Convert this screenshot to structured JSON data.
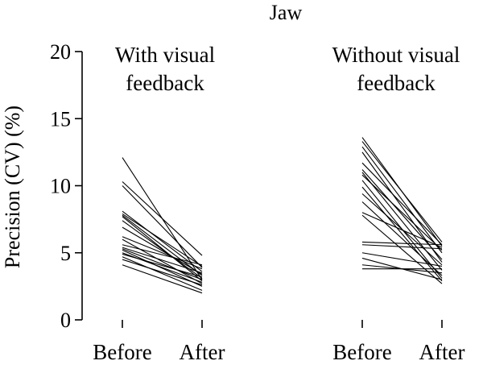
{
  "chart_data": {
    "type": "line",
    "title": "Jaw",
    "ylabel": "Precision (CV) (%)",
    "ylim": [
      0,
      20
    ],
    "yticks": [
      0,
      5,
      10,
      15,
      20
    ],
    "grid": false,
    "panels": [
      {
        "label_lines": [
          "With visual",
          "feedback"
        ],
        "categories": [
          "Before",
          "After"
        ],
        "subjects": [
          [
            12.1,
            3.0
          ],
          [
            10.3,
            4.8
          ],
          [
            10.0,
            3.9
          ],
          [
            8.1,
            3.6
          ],
          [
            7.9,
            4.0
          ],
          [
            7.8,
            3.3
          ],
          [
            7.7,
            2.9
          ],
          [
            7.4,
            3.1
          ],
          [
            6.9,
            3.4
          ],
          [
            6.2,
            3.8
          ],
          [
            6.0,
            2.7
          ],
          [
            5.6,
            4.1
          ],
          [
            5.4,
            3.5
          ],
          [
            5.3,
            3.0
          ],
          [
            5.2,
            2.5
          ],
          [
            5.0,
            2.8
          ],
          [
            4.9,
            3.2
          ],
          [
            4.7,
            2.2
          ],
          [
            4.5,
            2.6
          ],
          [
            4.1,
            2.0
          ]
        ]
      },
      {
        "label_lines": [
          "Without visual",
          "feedback"
        ],
        "categories": [
          "Before",
          "After"
        ],
        "subjects": [
          [
            13.6,
            5.5
          ],
          [
            13.3,
            5.8
          ],
          [
            12.9,
            5.0
          ],
          [
            12.5,
            4.3
          ],
          [
            11.7,
            5.6
          ],
          [
            11.2,
            4.5
          ],
          [
            11.0,
            3.7
          ],
          [
            10.8,
            5.2
          ],
          [
            10.4,
            3.1
          ],
          [
            9.9,
            2.9
          ],
          [
            9.4,
            4.1
          ],
          [
            8.8,
            3.3
          ],
          [
            8.0,
            5.4
          ],
          [
            7.8,
            2.7
          ],
          [
            5.8,
            5.6
          ],
          [
            5.6,
            5.3
          ],
          [
            5.0,
            4.0
          ],
          [
            4.6,
            3.0
          ],
          [
            4.1,
            3.5
          ],
          [
            3.8,
            3.8
          ]
        ]
      }
    ]
  }
}
